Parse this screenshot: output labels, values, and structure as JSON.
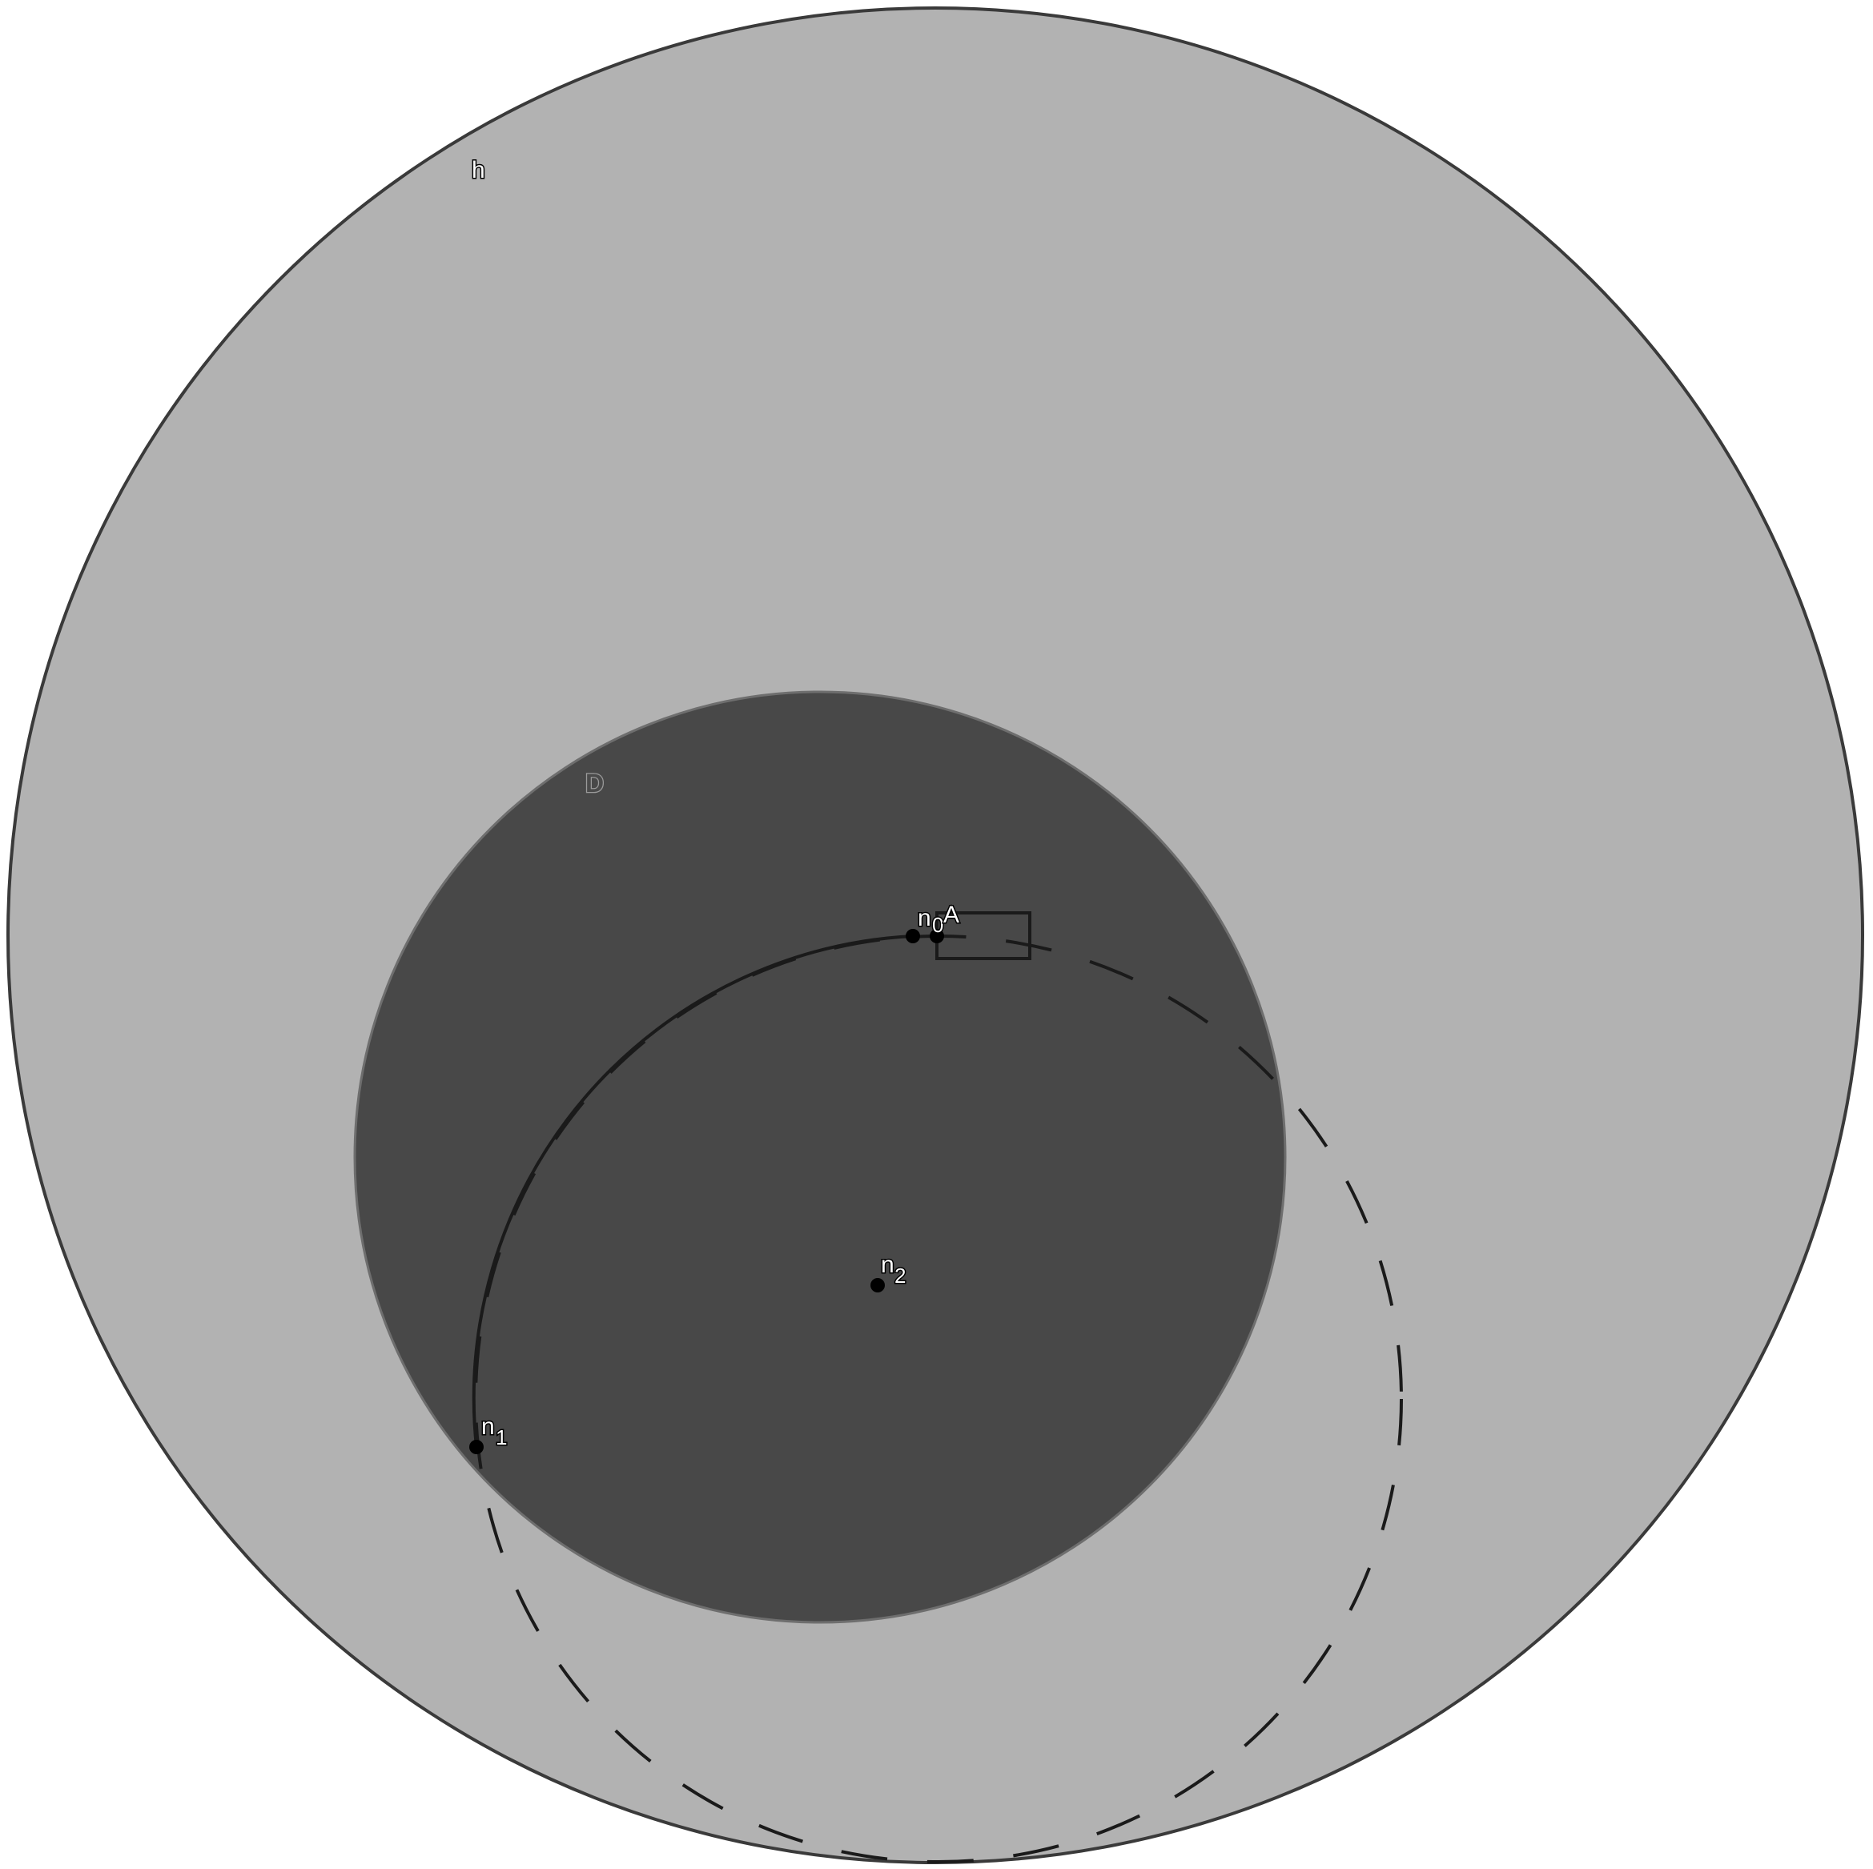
{
  "colors": {
    "outer_disc_fill": "#b2b2b2",
    "outer_disc_stroke": "#3a3a3a",
    "inner_disc_fill": "#484848",
    "inner_disc_stroke": "#6e6e6e",
    "curve_stroke": "#1a1a1a",
    "point_fill": "#000000"
  },
  "labels": {
    "outer_disc": "h",
    "inner_disc": "D",
    "point_top_left": "n",
    "point_top_left_sub": "0",
    "point_top_right": "A",
    "point_center": "n",
    "point_center_sub": "2",
    "point_left": "n",
    "point_left_sub": "1"
  }
}
